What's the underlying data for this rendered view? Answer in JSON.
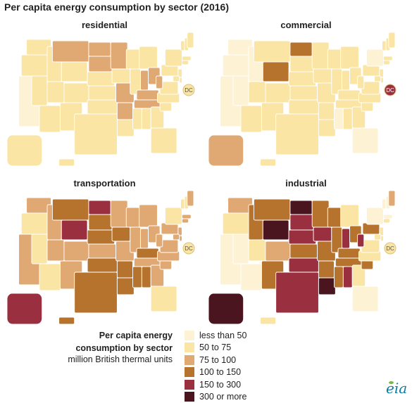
{
  "title": "Per capita energy consumption by sector (2016)",
  "dc_label": "DC",
  "legend": {
    "title_line1": "Per capita energy",
    "title_line2": "consumption by sector",
    "units": "million British thermal units",
    "classes": [
      {
        "label": "less than 50",
        "color": "#fdf3d4"
      },
      {
        "label": "50 to 75",
        "color": "#fae5a4"
      },
      {
        "label": "75 to 100",
        "color": "#e0a873"
      },
      {
        "label": "100 to 150",
        "color": "#b6732d"
      },
      {
        "label": "150 to 300",
        "color": "#9a2f3f"
      },
      {
        "label": "300 or more",
        "color": "#4b1520"
      }
    ]
  },
  "panels": [
    {
      "name": "residential",
      "default": 1,
      "dc": 1,
      "states": {
        "CA": 0,
        "MT": 2,
        "ND": 2,
        "SD": 2,
        "MN": 2,
        "MO": 2,
        "KY": 2,
        "TN": 2,
        "WV": 2,
        "IN": 2,
        "OH": 2,
        "AR": 2,
        "AK": 1
      }
    },
    {
      "name": "commercial",
      "default": 1,
      "dc": 4,
      "states": {
        "CA": 0,
        "OR": 0,
        "NV": 0,
        "ID": 0,
        "WA": 0,
        "FL": 0,
        "NY": 0,
        "MS": 0,
        "ND": 3,
        "WY": 3,
        "AK": 2,
        "NM": 1,
        "AZ": 1
      }
    },
    {
      "name": "transportation",
      "default": 2,
      "dc": 1,
      "states": {
        "OR": 1,
        "AZ": 1,
        "FL": 1,
        "NY": 1,
        "VT": 1,
        "NH": 1,
        "NV": 1,
        "ND": 4,
        "WY": 4,
        "AK": 4,
        "MT": 3,
        "TX": 3,
        "OK": 3,
        "NE": 3,
        "IA": 3,
        "SD": 3,
        "KY": 3,
        "LA": 3,
        "MS": 3,
        "AL": 3,
        "AR": 3,
        "HI": 3
      }
    },
    {
      "name": "industrial",
      "default": 1,
      "dc": 1,
      "states": {
        "CA": 0,
        "AZ": 0,
        "NV": 0,
        "FL": 0,
        "NY": 0,
        "VT": 0,
        "NH": 0,
        "MA": 0,
        "OR": 1,
        "UT": 1,
        "CO": 2,
        "WA": 2,
        "ME": 2,
        "GA": 1,
        "ND": 5,
        "WY": 5,
        "AK": 5,
        "LA": 5,
        "NE": 4,
        "SD": 4,
        "IA": 4,
        "IN": 4,
        "TX": 4,
        "OK": 4,
        "KS": 3,
        "MT": 3,
        "MN": 3,
        "WI": 3,
        "MO": 3,
        "IL": 3,
        "AR": 3,
        "KY": 3,
        "OH": 3,
        "PA": 3,
        "TN": 3,
        "SC": 3,
        "WV": 4,
        "AL": 4,
        "MS": 3,
        "NM": 3,
        "ID": 3
      }
    }
  ]
}
